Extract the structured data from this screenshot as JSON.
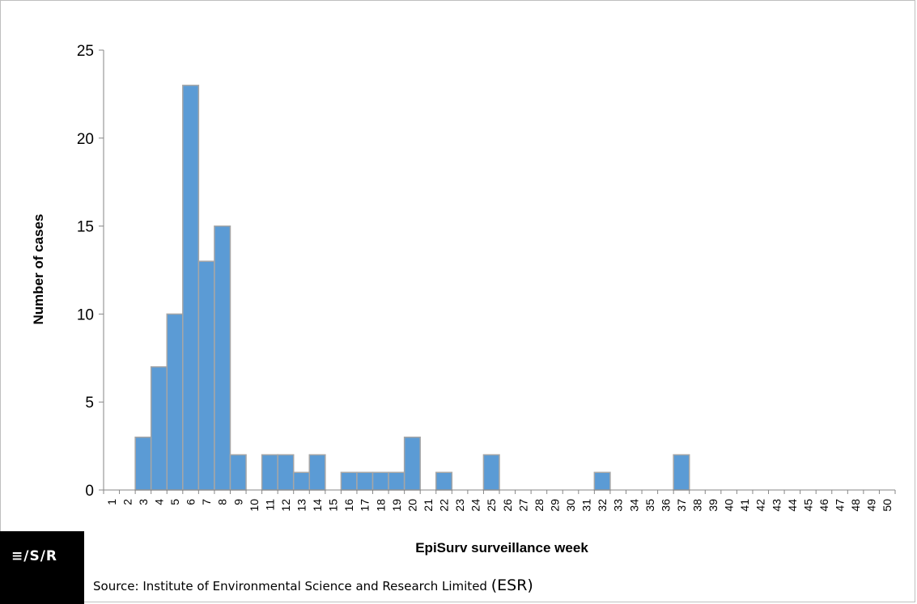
{
  "chart_data": {
    "type": "bar",
    "title": "",
    "xlabel": "EpiSurv surveillance week",
    "ylabel": "Number of cases",
    "ylim": [
      0,
      25
    ],
    "yticks": [
      0,
      5,
      10,
      15,
      20,
      25
    ],
    "grid": false,
    "legend": "none",
    "bar_color": "#5b9bd5",
    "bar_edge_color": "#a6a6a6",
    "categories": [
      "1",
      "2",
      "3",
      "4",
      "5",
      "6",
      "7",
      "8",
      "9",
      "10",
      "11",
      "12",
      "13",
      "14",
      "15",
      "16",
      "17",
      "18",
      "19",
      "20",
      "21",
      "22",
      "23",
      "24",
      "25",
      "26",
      "27",
      "28",
      "29",
      "30",
      "31",
      "32",
      "33",
      "34",
      "35",
      "36",
      "37",
      "38",
      "39",
      "40",
      "41",
      "42",
      "43",
      "44",
      "45",
      "46",
      "47",
      "48",
      "49",
      "50"
    ],
    "values": [
      0,
      0,
      3,
      7,
      10,
      23,
      13,
      15,
      2,
      0,
      2,
      2,
      1,
      2,
      0,
      1,
      1,
      1,
      1,
      3,
      0,
      1,
      0,
      0,
      2,
      0,
      0,
      0,
      0,
      0,
      0,
      1,
      0,
      0,
      0,
      0,
      2,
      0,
      0,
      0,
      0,
      0,
      0,
      0,
      0,
      0,
      0,
      0,
      0,
      0
    ]
  },
  "logo": {
    "text": "≡/S/R"
  },
  "source": {
    "text": "Source: Institute of Environmental Science and Research Limited ",
    "abbr": "(ESR)"
  }
}
